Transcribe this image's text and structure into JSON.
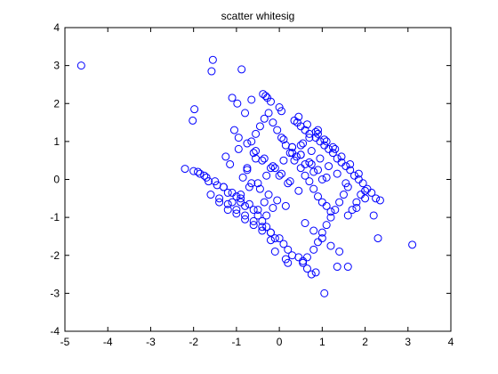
{
  "chart_data": {
    "type": "scatter",
    "title": "scatter whitesig",
    "xlabel": "",
    "ylabel": "",
    "xlim": [
      -5,
      4
    ],
    "ylim": [
      -4,
      4
    ],
    "xticks": [
      "-5",
      "-4",
      "-3",
      "-2",
      "-1",
      "0",
      "1",
      "2",
      "3",
      "4"
    ],
    "yticks": [
      "-4",
      "-3",
      "-2",
      "-1",
      "0",
      "1",
      "2",
      "3",
      "4"
    ],
    "grid": false,
    "legend": "none",
    "marker": "circle-open",
    "color": "#0000ff",
    "series": [
      {
        "x": [
          -4.62,
          -1.55,
          -1.58,
          -0.88,
          -0.38,
          -0.32,
          -0.28,
          -1.1,
          -0.98,
          -0.8,
          -0.65,
          -0.2,
          0.0,
          0.05,
          -1.98,
          -2.02,
          0.35,
          0.42,
          0.5,
          0.6,
          0.7,
          0.85,
          0.95,
          1.05,
          1.15,
          1.25,
          1.35,
          1.45,
          1.55,
          1.65,
          1.75,
          1.85,
          1.95,
          2.05,
          2.15,
          2.25,
          2.35,
          -2.2,
          -2.0,
          -1.85,
          -1.7,
          -1.5,
          -1.3,
          -1.2,
          -1.0,
          -0.9,
          -0.8,
          -0.6,
          -0.5,
          -0.4,
          -0.3,
          -0.2,
          -0.1,
          0.1,
          0.2,
          0.3,
          0.45,
          0.55,
          0.65,
          0.75,
          0.8,
          0.9,
          1.0,
          1.1,
          1.2,
          1.3,
          1.4,
          1.5,
          1.6,
          1.7,
          1.8,
          1.9,
          2.0,
          2.3,
          3.1,
          1.05,
          0.85,
          1.35,
          1.6,
          0.55,
          0.2,
          0.15,
          -0.1,
          -0.2,
          0.65,
          -0.75,
          -1.15,
          -1.25,
          -0.95,
          -0.65,
          -0.55,
          -0.45,
          -0.35,
          -0.25,
          -0.15,
          -0.05,
          0.05,
          0.15,
          0.25,
          0.35,
          0.5,
          0.6,
          0.7,
          0.8,
          0.9,
          1.0,
          1.1,
          1.2,
          0.4,
          0.6,
          0.8,
          1.0,
          0.3,
          0.5,
          0.7,
          0.9,
          1.1,
          0.1,
          0.3,
          0.5,
          0.75,
          -0.6,
          -0.4,
          -0.2,
          0.0,
          0.2,
          0.45,
          -1.4,
          -1.2,
          -1.0,
          -0.8,
          -0.6,
          -0.4,
          -0.2,
          0.0,
          -1.6,
          -1.4,
          -1.2,
          -1.0,
          -0.8,
          -0.6,
          -0.4,
          -1.3,
          -1.1,
          -0.9,
          -0.7,
          -0.5,
          -0.3,
          -0.85,
          -0.65,
          -0.45,
          -0.25,
          -0.05,
          0.15,
          -1.05,
          -0.95,
          -0.75,
          -0.55,
          -0.35,
          -0.15,
          0.05,
          0.25,
          0.45,
          0.65,
          0.85,
          1.05,
          1.25,
          1.45,
          1.65,
          1.85,
          0.55,
          0.75,
          0.95,
          1.15,
          1.35,
          1.55,
          0.9,
          1.1,
          1.3,
          0.6,
          0.8,
          1.0,
          1.2,
          1.4,
          1.6,
          1.8,
          2.0,
          2.2,
          -0.7,
          -0.9,
          -1.1,
          -0.5,
          -0.3,
          -0.1,
          0.1,
          0.3,
          0.5,
          0.7,
          0.9,
          -1.9,
          -1.75,
          -1.65,
          -1.45,
          -0.35,
          -0.15,
          -0.55,
          -0.75
        ],
        "y": [
          3.0,
          3.15,
          2.85,
          2.9,
          2.25,
          2.2,
          2.15,
          2.15,
          2.0,
          1.75,
          2.1,
          2.05,
          1.9,
          1.8,
          1.85,
          1.55,
          1.55,
          1.5,
          1.4,
          1.3,
          1.2,
          1.1,
          1.0,
          0.9,
          0.8,
          0.7,
          0.55,
          0.45,
          0.35,
          0.25,
          0.1,
          0.0,
          -0.1,
          -0.25,
          -0.35,
          -0.5,
          -0.55,
          0.28,
          0.22,
          0.15,
          0.05,
          -0.05,
          -0.2,
          -0.35,
          -0.45,
          -0.6,
          -0.7,
          -0.8,
          -0.95,
          -1.1,
          -1.25,
          -1.4,
          -1.55,
          -1.7,
          -1.85,
          -2.0,
          -2.05,
          -2.2,
          -2.35,
          -2.5,
          -1.85,
          -1.65,
          -1.4,
          -1.2,
          -1.0,
          -0.8,
          -0.6,
          -0.4,
          -0.2,
          -0.8,
          -0.6,
          -0.4,
          -0.3,
          -1.55,
          -1.72,
          -3.0,
          -2.45,
          -2.3,
          -2.3,
          -2.15,
          -2.2,
          -2.1,
          -1.9,
          -1.6,
          -2.05,
          0.3,
          0.4,
          0.6,
          0.8,
          1.0,
          1.2,
          1.4,
          1.6,
          1.75,
          1.5,
          1.3,
          1.1,
          0.9,
          0.7,
          0.5,
          0.3,
          0.1,
          -0.05,
          -0.25,
          -0.45,
          -0.6,
          -0.7,
          -0.85,
          0.6,
          0.4,
          0.2,
          0.0,
          0.85,
          0.65,
          0.45,
          0.25,
          0.05,
          1.05,
          0.85,
          0.65,
          0.4,
          0.7,
          0.5,
          0.3,
          0.1,
          -0.1,
          -0.3,
          -0.5,
          -0.65,
          -0.8,
          -0.95,
          -1.1,
          -1.25,
          -1.4,
          -1.55,
          -0.4,
          -0.6,
          -0.8,
          -0.9,
          -1.05,
          -1.2,
          -1.35,
          -0.2,
          -0.35,
          -0.5,
          -0.65,
          -0.8,
          -0.95,
          0.05,
          -0.1,
          -0.25,
          -0.4,
          -0.55,
          -0.7,
          1.3,
          1.1,
          0.95,
          0.75,
          0.55,
          0.35,
          0.15,
          -0.05,
          1.65,
          1.45,
          1.25,
          1.05,
          0.85,
          0.6,
          0.4,
          0.15,
          0.95,
          0.75,
          0.55,
          0.35,
          0.15,
          -0.1,
          1.2,
          1.0,
          0.8,
          -1.15,
          -1.35,
          -1.55,
          -1.75,
          -1.9,
          -0.95,
          -0.75,
          -0.5,
          -0.95,
          -0.2,
          -0.4,
          -0.6,
          -0.1,
          0.1,
          0.3,
          0.5,
          0.7,
          0.9,
          1.1,
          1.3,
          0.2,
          0.1,
          -0.05,
          -0.15,
          -0.6,
          -0.75,
          0.55,
          0.25
        ]
      }
    ]
  }
}
